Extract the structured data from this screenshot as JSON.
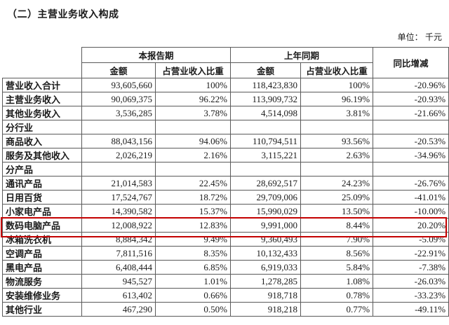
{
  "title": "（二）主营业务收入构成",
  "unit_note": "单位： 千元",
  "table": {
    "col_groups": {
      "current": "本报告期",
      "prior": "上年同期",
      "yoy": "同比增减"
    },
    "sub_headers": {
      "amount": "金额",
      "pct": "占营业收入比重"
    },
    "rows": [
      {
        "label": "营业收入合计",
        "ca": "93,605,660",
        "cp": "100%",
        "pa": "118,423,830",
        "pp": "100%",
        "yoy": "-20.96%"
      },
      {
        "label": "主营业务收入",
        "ca": "90,069,375",
        "cp": "96.22%",
        "pa": "113,909,732",
        "pp": "96.19%",
        "yoy": "-20.93%"
      },
      {
        "label": "其他业务收入",
        "ca": "3,536,285",
        "cp": "3.78%",
        "pa": "4,514,098",
        "pp": "3.81%",
        "yoy": "-21.66%"
      },
      {
        "label": "分行业",
        "ca": "",
        "cp": "",
        "pa": "",
        "pp": "",
        "yoy": ""
      },
      {
        "label": "商品收入",
        "ca": "88,043,156",
        "cp": "94.06%",
        "pa": "110,794,511",
        "pp": "93.56%",
        "yoy": "-20.53%"
      },
      {
        "label": "服务及其他收入",
        "ca": "2,026,219",
        "cp": "2.16%",
        "pa": "3,115,221",
        "pp": "2.63%",
        "yoy": "-34.96%"
      },
      {
        "label": "分产品",
        "ca": "",
        "cp": "",
        "pa": "",
        "pp": "",
        "yoy": ""
      },
      {
        "label": "通讯产品",
        "ca": "21,014,583",
        "cp": "22.45%",
        "pa": "28,692,517",
        "pp": "24.23%",
        "yoy": "-26.76%"
      },
      {
        "label": "日用百货",
        "ca": "17,524,767",
        "cp": "18.72%",
        "pa": "29,709,006",
        "pp": "25.09%",
        "yoy": "-41.01%"
      },
      {
        "label": "小家电产品",
        "ca": "14,390,582",
        "cp": "15.37%",
        "pa": "15,990,029",
        "pp": "13.50%",
        "yoy": "-10.00%"
      },
      {
        "label": "数码电脑产品",
        "ca": "12,008,922",
        "cp": "12.83%",
        "pa": "9,991,000",
        "pp": "8.44%",
        "yoy": "20.20%"
      },
      {
        "label": "冰箱洗衣机",
        "ca": "8,884,342",
        "cp": "9.49%",
        "pa": "9,360,493",
        "pp": "7.90%",
        "yoy": "-5.09%"
      },
      {
        "label": "空调产品",
        "ca": "7,811,516",
        "cp": "8.35%",
        "pa": "10,132,433",
        "pp": "8.56%",
        "yoy": "-22.91%"
      },
      {
        "label": "黑电产品",
        "ca": "6,408,444",
        "cp": "6.85%",
        "pa": "6,919,033",
        "pp": "5.84%",
        "yoy": "-7.38%"
      },
      {
        "label": "物流服务",
        "ca": "945,527",
        "cp": "1.01%",
        "pa": "1,278,285",
        "pp": "1.08%",
        "yoy": "-26.03%"
      },
      {
        "label": "安装维修业务",
        "ca": "613,402",
        "cp": "0.66%",
        "pa": "918,718",
        "pp": "0.78%",
        "yoy": "-33.23%"
      },
      {
        "label": "其他行业",
        "ca": "467,290",
        "cp": "0.50%",
        "pa": "918,218",
        "pp": "0.77%",
        "yoy": "-49.11%"
      }
    ]
  },
  "highlight": {
    "color": "#c40000",
    "row_label": "数码电脑产品"
  }
}
